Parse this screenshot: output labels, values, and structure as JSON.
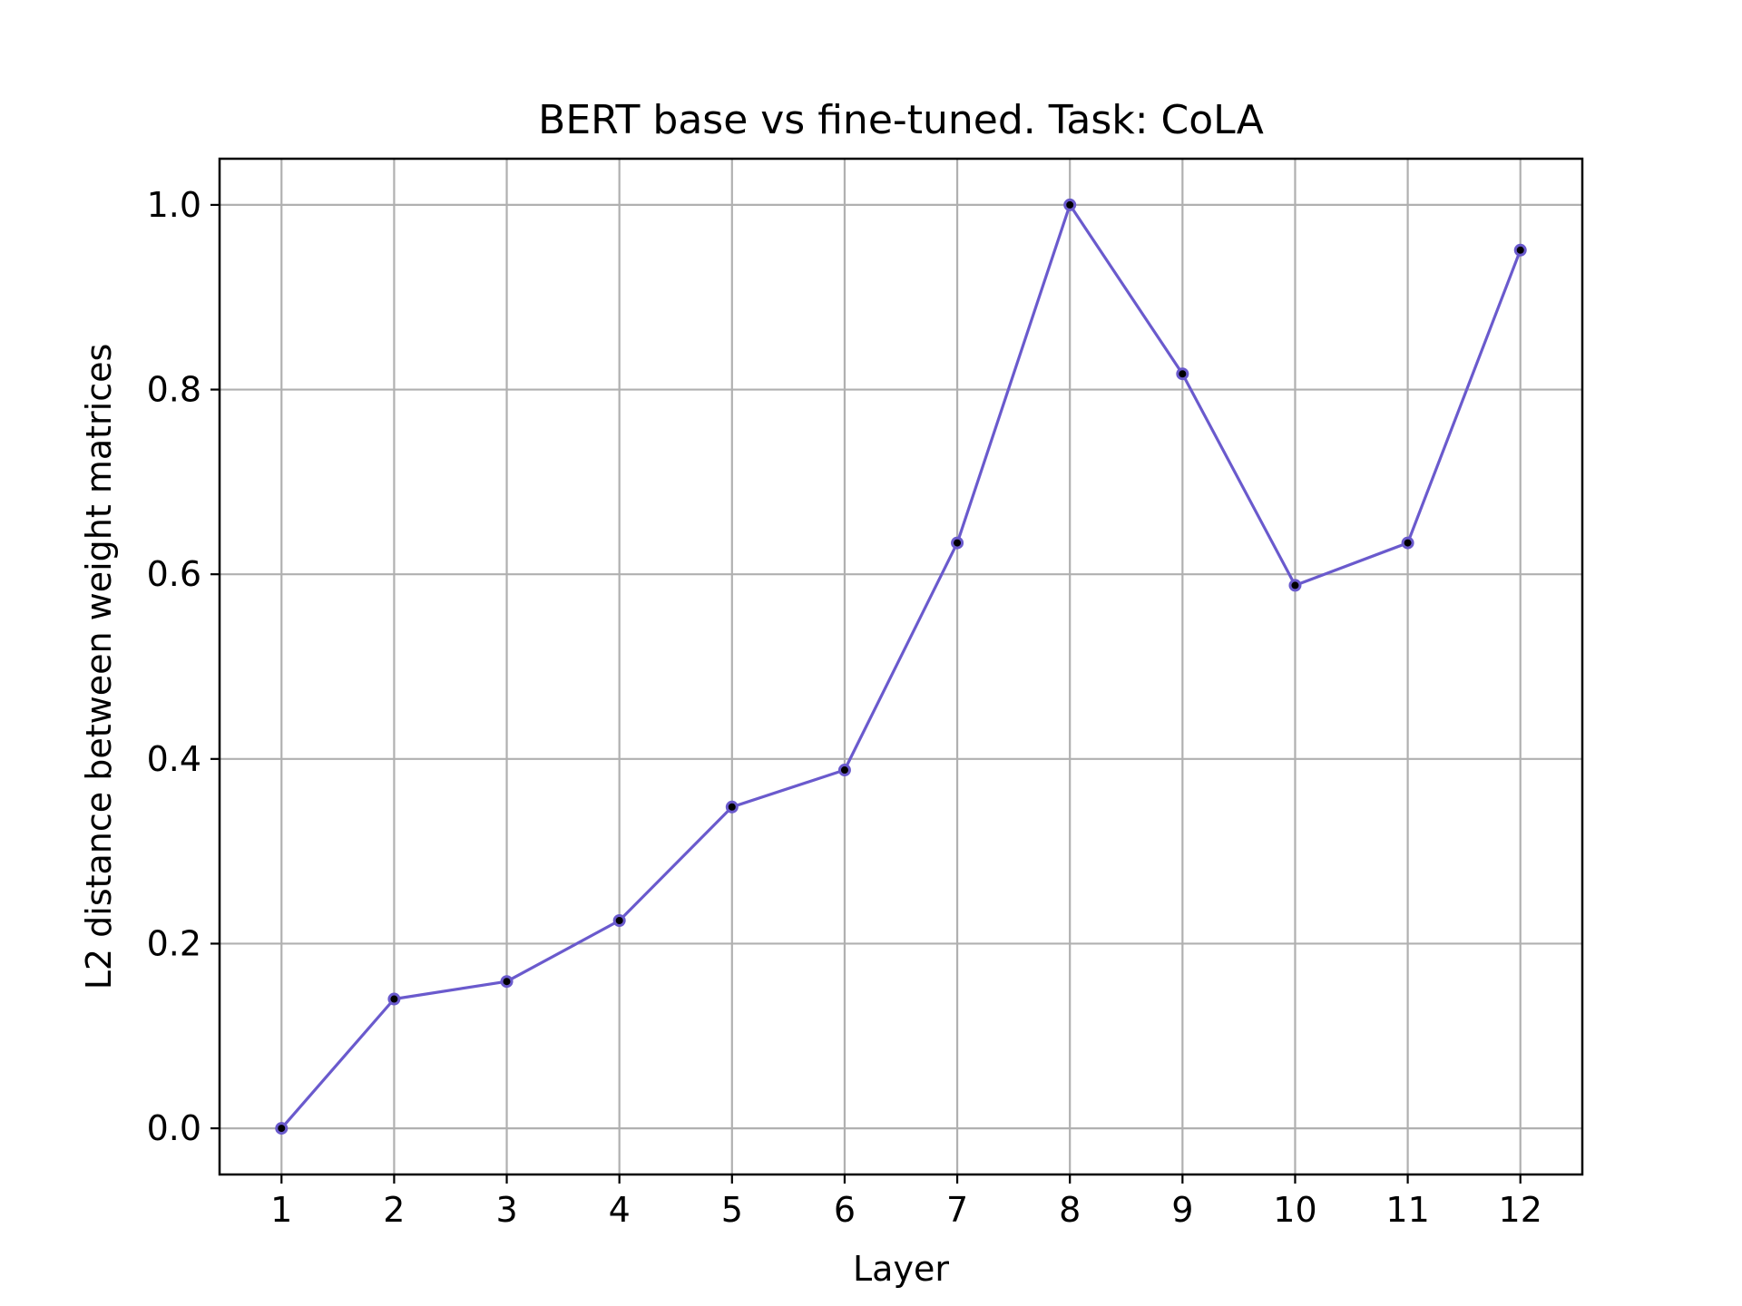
{
  "chart_data": {
    "type": "line",
    "title": "BERT base vs fine-tuned. Task: CoLA",
    "xlabel": "Layer",
    "ylabel": "L2 distance between weight matrices",
    "x": [
      1,
      2,
      3,
      4,
      5,
      6,
      7,
      8,
      9,
      10,
      11,
      12
    ],
    "values": [
      0.0,
      0.14,
      0.159,
      0.225,
      0.348,
      0.388,
      0.634,
      1.0,
      0.817,
      0.588,
      0.634,
      0.951
    ],
    "xlim": [
      0.45,
      12.55
    ],
    "ylim": [
      -0.05,
      1.05
    ],
    "xticks": [
      "1",
      "2",
      "3",
      "4",
      "5",
      "6",
      "7",
      "8",
      "9",
      "10",
      "11",
      "12"
    ],
    "yticks": [
      "0.0",
      "0.2",
      "0.4",
      "0.6",
      "0.8",
      "1.0"
    ],
    "grid": true,
    "line_color": "#6a5acd",
    "marker_color": "#000000",
    "grid_color": "#b0b0b0"
  }
}
